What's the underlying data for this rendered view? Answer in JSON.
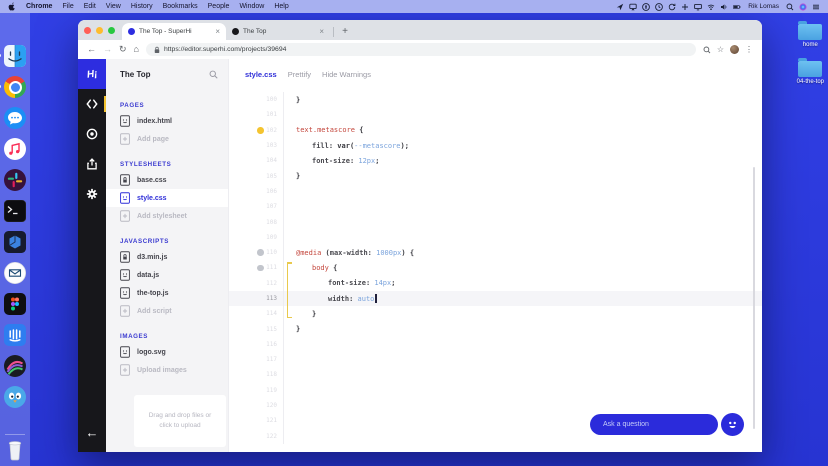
{
  "colors": {
    "desktop_blue": "#2c3ae0",
    "superhi_blue": "#2d2de0",
    "ask_blue": "#2b2bdb",
    "warning_yellow": "#f4c430",
    "selector_red": "#c4473d",
    "value_blue": "#7aa3dc"
  },
  "menu_bar": {
    "items": [
      "Chrome",
      "File",
      "Edit",
      "View",
      "History",
      "Bookmarks",
      "People",
      "Window",
      "Help"
    ],
    "status_icons": [
      "location",
      "airplay",
      "passwords",
      "clock",
      "sync",
      "add",
      "display",
      "wifi",
      "volume",
      "battery"
    ],
    "user": "Rik Lomas",
    "status_icons_right": [
      "spotlight",
      "siri",
      "notification-center"
    ]
  },
  "dock": {
    "items": [
      {
        "name": "finder",
        "running": true
      },
      {
        "name": "chrome",
        "running": true
      },
      {
        "name": "messages"
      },
      {
        "name": "music"
      },
      {
        "name": "slack"
      },
      {
        "name": "terminal"
      },
      {
        "name": "code-editor"
      },
      {
        "name": "mail"
      },
      {
        "name": "figma"
      },
      {
        "name": "intercom"
      },
      {
        "name": "screenflow"
      },
      {
        "name": "twitterrific"
      },
      {
        "name": "trash"
      }
    ]
  },
  "desktop": {
    "folders": [
      {
        "label": "home"
      },
      {
        "label": "04-the-top"
      }
    ]
  },
  "browser": {
    "tabs": [
      {
        "title": "The Top - SuperHi",
        "favicon_color": "#2d2de0",
        "active": true
      },
      {
        "title": "The Top",
        "favicon_color": "#17171b",
        "active": false
      }
    ],
    "new_tab_label": "+",
    "url": "https://editor.superhi.com/projects/39694"
  },
  "editor": {
    "rail_items": [
      "code",
      "preview",
      "share",
      "settings"
    ],
    "back_label": "←",
    "sidebar": {
      "project_title": "The Top",
      "sections": [
        {
          "label": "PAGES",
          "files": [
            {
              "name": "index.html",
              "icon": "file"
            }
          ],
          "action": "Add page"
        },
        {
          "label": "STYLESHEETS",
          "files": [
            {
              "name": "base.css",
              "icon": "file-lock"
            },
            {
              "name": "style.css",
              "icon": "file",
              "active": true
            }
          ],
          "action": "Add stylesheet"
        },
        {
          "label": "JAVASCRIPTS",
          "files": [
            {
              "name": "d3.min.js",
              "icon": "file-lock"
            },
            {
              "name": "data.js",
              "icon": "file"
            },
            {
              "name": "the-top.js",
              "icon": "file"
            }
          ],
          "action": "Add script"
        },
        {
          "label": "IMAGES",
          "files": [
            {
              "name": "logo.svg",
              "icon": "file"
            }
          ],
          "action": "Upload images"
        }
      ],
      "dropzone": "Drag and drop files or click to upload"
    },
    "toolbar": {
      "filename": "style.css",
      "prettify": "Prettify",
      "hide_warnings": "Hide Warnings"
    },
    "code": {
      "active_line": 113,
      "bracket": {
        "from": 111,
        "to": 114
      },
      "lines": [
        {
          "n": 100,
          "i": 0,
          "t": [
            [
              "pun",
              "}"
            ]
          ]
        },
        {
          "n": 101
        },
        {
          "n": 102,
          "dot": "warn",
          "t": [
            [
              "sel",
              "text.metascore"
            ],
            [
              "pun",
              " {"
            ]
          ]
        },
        {
          "n": 103,
          "i": 1,
          "t": [
            [
              "prop",
              "fill"
            ],
            [
              "pun",
              ": "
            ],
            [
              "fn",
              "var("
            ],
            [
              "val",
              "--metascore"
            ],
            [
              "pun",
              ");"
            ]
          ]
        },
        {
          "n": 104,
          "i": 1,
          "t": [
            [
              "prop",
              "font-size"
            ],
            [
              "pun",
              ": "
            ],
            [
              "val",
              "12px"
            ],
            [
              "pun",
              ";"
            ]
          ]
        },
        {
          "n": 105,
          "t": [
            [
              "pun",
              "}"
            ]
          ]
        },
        {
          "n": 106
        },
        {
          "n": 107
        },
        {
          "n": 108
        },
        {
          "n": 109
        },
        {
          "n": 110,
          "dot": "off",
          "t": [
            [
              "sel",
              "@media"
            ],
            [
              "pun",
              " ("
            ],
            [
              "prop",
              "max-width"
            ],
            [
              "pun",
              ": "
            ],
            [
              "val",
              "1000px"
            ],
            [
              "pun",
              ") {"
            ]
          ]
        },
        {
          "n": 111,
          "dot": "off",
          "i": 1,
          "t": [
            [
              "sel",
              "body"
            ],
            [
              "pun",
              " {"
            ]
          ]
        },
        {
          "n": 112,
          "i": 2,
          "t": [
            [
              "prop",
              "font-size"
            ],
            [
              "pun",
              ": "
            ],
            [
              "val",
              "14px"
            ],
            [
              "pun",
              ";"
            ]
          ]
        },
        {
          "n": 113,
          "i": 2,
          "active": true,
          "cursor": true,
          "t": [
            [
              "prop",
              "width"
            ],
            [
              "pun",
              ": "
            ],
            [
              "val",
              "auto"
            ]
          ]
        },
        {
          "n": 114,
          "i": 1,
          "t": [
            [
              "pun",
              "}"
            ]
          ]
        },
        {
          "n": 115,
          "t": [
            [
              "pun",
              "}"
            ]
          ]
        },
        {
          "n": 116
        },
        {
          "n": 117
        },
        {
          "n": 118
        },
        {
          "n": 119
        },
        {
          "n": 120
        },
        {
          "n": 121
        },
        {
          "n": 122
        }
      ]
    },
    "ask_label": "Ask a question"
  }
}
